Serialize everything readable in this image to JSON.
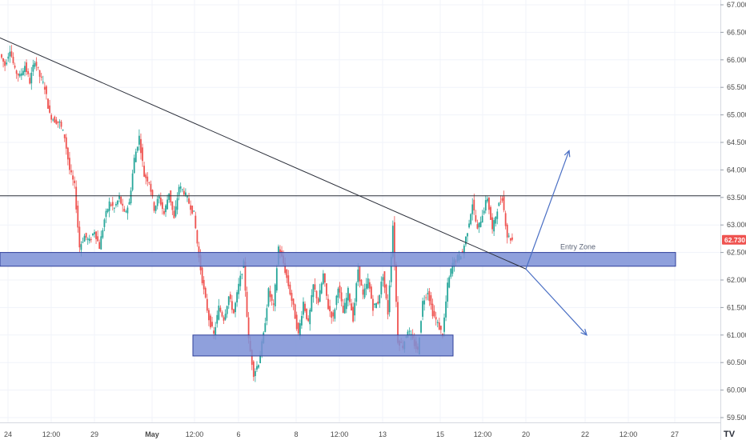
{
  "chart_data": {
    "type": "candlestick",
    "instrument_last_price": "62.730",
    "price_axis": {
      "ticks": [
        "67.000",
        "66.500",
        "66.000",
        "65.500",
        "65.000",
        "64.500",
        "64.000",
        "63.500",
        "63.000",
        "62.500",
        "62.000",
        "61.500",
        "61.000",
        "60.500",
        "60.000",
        "59.500"
      ],
      "range": [
        59.3,
        67.05
      ]
    },
    "time_axis": {
      "ticks": [
        "24",
        "12:00",
        "29",
        "May",
        "12:00",
        "6",
        "8",
        "12:00",
        "13",
        "15",
        "12:00",
        "20",
        "22",
        "12:00",
        "27"
      ]
    },
    "colors": {
      "up": "#26a69a",
      "down": "#ef5350",
      "trendline": "#2a2e39",
      "horizontal_line": "#2a2e39",
      "zone_fill": "#7b8fd6",
      "zone_border": "#2f3f9a",
      "arrow": "#4a6fc4",
      "price_badge": "#ef5350"
    },
    "annotations": {
      "entry_zone_label": "Entry Zone",
      "resistance_level": 63.53,
      "entry_zone": [
        62.25,
        62.5
      ],
      "support_zone": [
        60.62,
        61.0
      ],
      "trendline": {
        "from": "start",
        "start_price": 66.4,
        "to_price": 62.2
      },
      "projected_up_target": 64.35,
      "projected_down_target": 61.0
    },
    "logo": "TV",
    "price_path": [
      66.1,
      65.9,
      66.2,
      65.8,
      65.7,
      65.9,
      65.6,
      66.0,
      65.7,
      65.5,
      65.0,
      64.9,
      64.85,
      64.6,
      64.0,
      63.7,
      62.6,
      62.8,
      62.7,
      62.9,
      62.6,
      63.1,
      63.4,
      63.3,
      63.5,
      63.2,
      63.4,
      64.2,
      64.6,
      63.9,
      63.8,
      63.3,
      63.5,
      63.2,
      63.6,
      63.1,
      63.7,
      63.6,
      63.4,
      63.2,
      62.4,
      61.8,
      61.3,
      61.0,
      61.5,
      61.3,
      61.7,
      61.4,
      61.9,
      62.3,
      60.9,
      60.3,
      60.5,
      61.0,
      61.8,
      61.5,
      62.6,
      62.3,
      61.9,
      61.5,
      61.0,
      61.6,
      61.2,
      61.9,
      61.6,
      62.1,
      61.5,
      61.3,
      61.9,
      61.4,
      61.8,
      61.3,
      62.2,
      61.7,
      62.0,
      61.5,
      61.6,
      62.1,
      61.4,
      63.0,
      60.9,
      60.8,
      61.1,
      60.9,
      60.7,
      61.6,
      61.8,
      61.4,
      61.2,
      61.0,
      61.9,
      62.3,
      62.4,
      62.5,
      62.9,
      63.4,
      62.9,
      63.2,
      63.5,
      62.9,
      63.3,
      63.5,
      62.8,
      62.73
    ]
  }
}
